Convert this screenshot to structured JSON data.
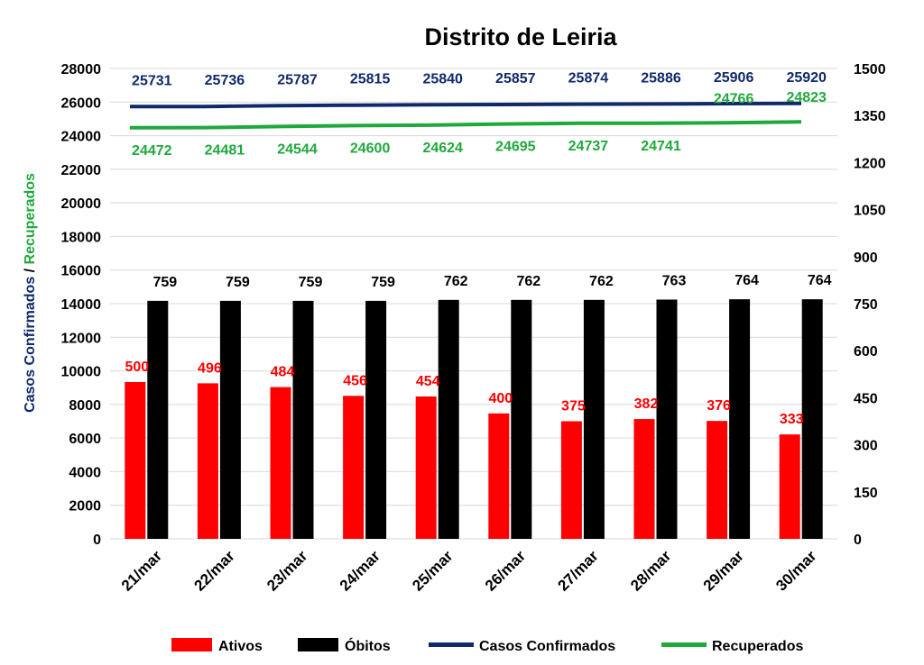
{
  "chart_data": {
    "type": "bar",
    "title": "Distrito de Leiria",
    "categories": [
      "21/mar",
      "22/mar",
      "23/mar",
      "24/mar",
      "25/mar",
      "26/mar",
      "27/mar",
      "28/mar",
      "29/mar",
      "30/mar"
    ],
    "ylabel_left_part1": "Casos Confirmados",
    "ylabel_left_sep": " / ",
    "ylabel_left_part2": "Recuperados",
    "ylim_left": [
      0,
      28000
    ],
    "ylim_right": [
      0,
      1500
    ],
    "yticks_left": [
      "0",
      "2000",
      "4000",
      "6000",
      "8000",
      "10000",
      "12000",
      "14000",
      "16000",
      "18000",
      "20000",
      "22000",
      "24000",
      "26000",
      "28000"
    ],
    "yticks_right": [
      "0",
      "150",
      "300",
      "450",
      "600",
      "750",
      "900",
      "1050",
      "1200",
      "1350",
      "1500"
    ],
    "grid": true,
    "legend_position": "bottom",
    "series": [
      {
        "name": "Ativos",
        "kind": "bar",
        "axis": "right",
        "color": "#ff0000",
        "label_color": "#ff0000",
        "values": [
          500,
          496,
          484,
          456,
          454,
          400,
          375,
          382,
          376,
          333
        ]
      },
      {
        "name": "Óbitos",
        "kind": "bar",
        "axis": "right",
        "color": "#000000",
        "label_color": "#000000",
        "values": [
          759,
          759,
          759,
          759,
          762,
          762,
          762,
          763,
          764,
          764
        ]
      },
      {
        "name": "Casos Confirmados",
        "kind": "line",
        "axis": "left",
        "color": "#0f2a6b",
        "label_color": "#0f2a6b",
        "values": [
          25731,
          25736,
          25787,
          25815,
          25840,
          25857,
          25874,
          25886,
          25906,
          25920
        ]
      },
      {
        "name": "Recuperados",
        "kind": "line",
        "axis": "left",
        "color": "#1fa83c",
        "label_color": "#1fa83c",
        "values": [
          24472,
          24481,
          24544,
          24600,
          24624,
          24695,
          24737,
          24741,
          24766,
          24823
        ]
      }
    ],
    "colors": {
      "left_label_blue": "#0f2a6b",
      "left_label_green": "#1fa83c"
    }
  }
}
